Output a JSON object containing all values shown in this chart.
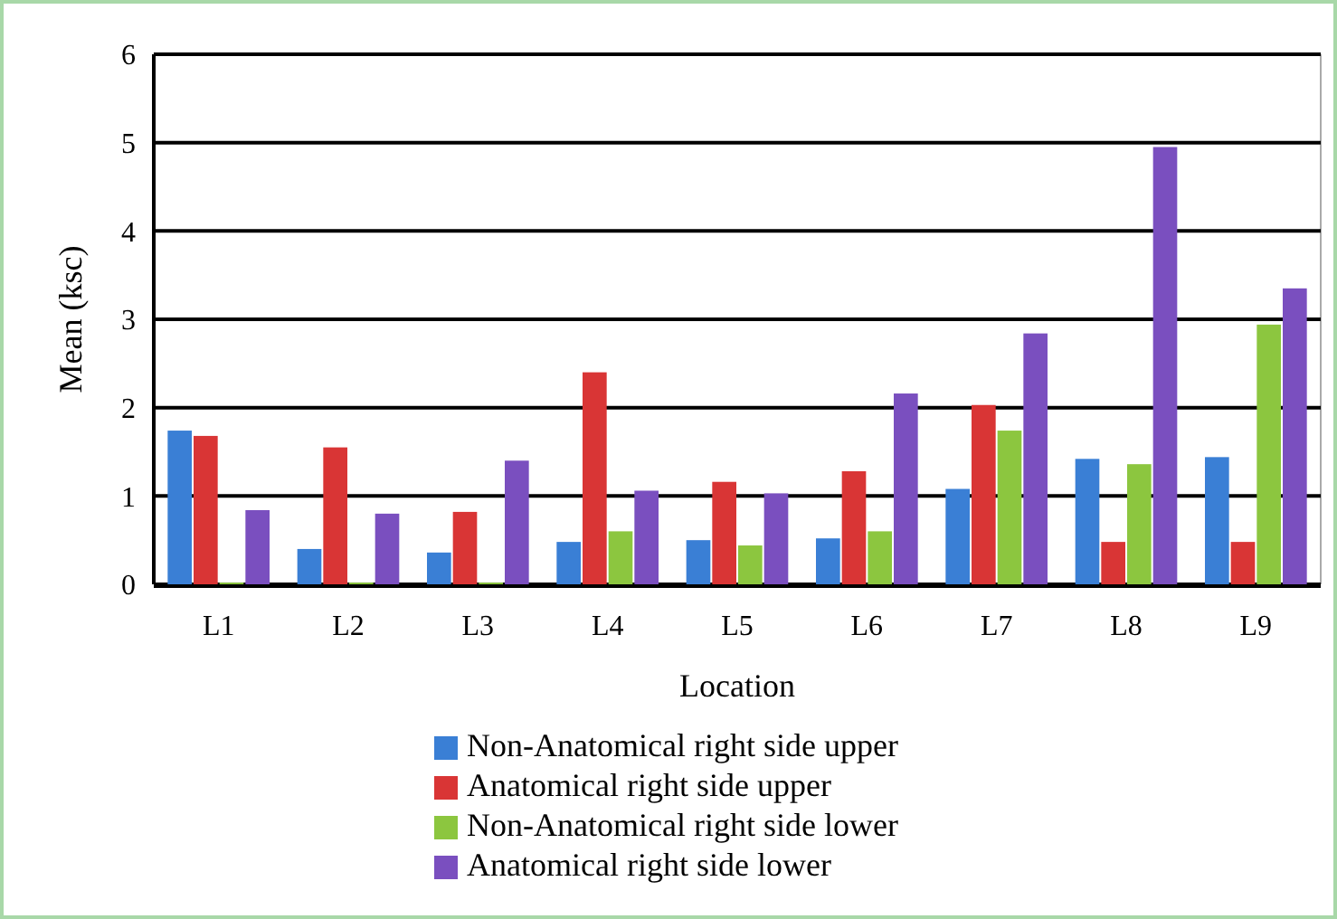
{
  "chart_data": {
    "type": "bar",
    "xlabel": "Location",
    "ylabel": "Mean (ksc)",
    "categories": [
      "L1",
      "L2",
      "L3",
      "L4",
      "L5",
      "L6",
      "L7",
      "L8",
      "L9"
    ],
    "series": [
      {
        "name": "Non-Anatomical right side upper",
        "color": "#3a7fd5",
        "values": [
          1.74,
          0.4,
          0.36,
          0.48,
          0.5,
          0.52,
          1.08,
          1.42,
          1.44
        ]
      },
      {
        "name": "Anatomical right side upper",
        "color": "#d93535",
        "values": [
          1.68,
          1.55,
          0.82,
          2.4,
          1.16,
          1.28,
          2.03,
          0.48,
          0.48
        ]
      },
      {
        "name": "Non-Anatomical right side lower",
        "color": "#8cc63f",
        "values": [
          0.02,
          0.02,
          0.02,
          0.6,
          0.44,
          0.6,
          1.74,
          1.36,
          2.94
        ]
      },
      {
        "name": "Anatomical right side lower",
        "color": "#7a4fbf",
        "values": [
          0.84,
          0.8,
          1.4,
          1.06,
          1.03,
          2.16,
          2.84,
          4.95,
          3.35
        ]
      }
    ],
    "ylim": [
      0,
      6
    ],
    "yticks": [
      0,
      1,
      2,
      3,
      4,
      5,
      6
    ],
    "grid": "y",
    "legend": "bottom"
  }
}
